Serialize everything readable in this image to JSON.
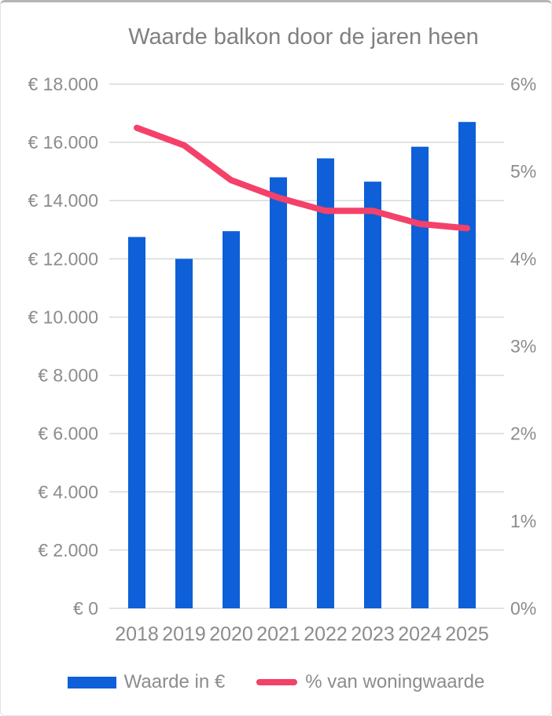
{
  "title": "Waarde balkon door de jaren heen",
  "legend": {
    "bar_label": "Waarde in €",
    "line_label": "% van woningwaarde"
  },
  "colors": {
    "bar": "#0e5fd8",
    "line": "#f4416a",
    "axis_text": "#8c8c8c",
    "title_text": "#808080",
    "gridline": "#d9d9d9"
  },
  "chart_data": {
    "type": "bar",
    "subtype": "combo bar+line, dual axis",
    "title": "Waarde balkon door de jaren heen",
    "categories": [
      "2018",
      "2019",
      "2020",
      "2021",
      "2022",
      "2023",
      "2024",
      "2025"
    ],
    "series": [
      {
        "name": "Waarde in €",
        "type": "bar",
        "axis": "left",
        "values": [
          12750,
          12000,
          12950,
          14800,
          15450,
          14650,
          15850,
          16700
        ]
      },
      {
        "name": "% van woningwaarde",
        "type": "line",
        "axis": "right",
        "values": [
          5.5,
          5.3,
          4.9,
          4.7,
          4.55,
          4.55,
          4.4,
          4.35
        ]
      }
    ],
    "left_axis": {
      "min": 0,
      "max": 18000,
      "step": 2000,
      "tick_labels": [
        "€ 0",
        "€ 2.000",
        "€ 4.000",
        "€ 6.000",
        "€ 8.000",
        "€ 10.000",
        "€ 12.000",
        "€ 14.000",
        "€ 16.000",
        "€ 18.000"
      ]
    },
    "right_axis": {
      "min": 0,
      "max": 6,
      "step": 1,
      "tick_labels": [
        "0%",
        "1%",
        "2%",
        "3%",
        "4%",
        "5%",
        "6%"
      ]
    },
    "grid": true,
    "legend_position": "bottom"
  }
}
